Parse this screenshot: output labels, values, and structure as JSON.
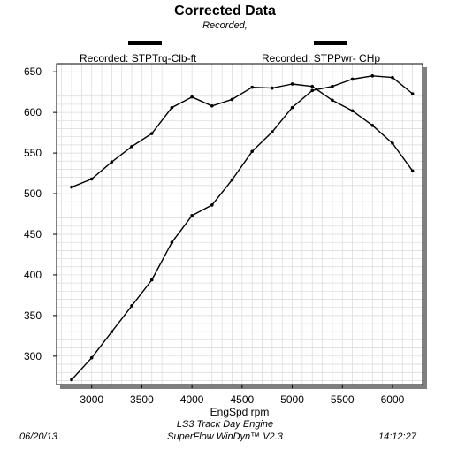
{
  "header": {
    "title": "Corrected Data",
    "subtitle": "Recorded,"
  },
  "legend": {
    "torque_label": "Recorded: STPTrq-Clb-ft",
    "power_label": "Recorded: STPPwr- CHp"
  },
  "footer": {
    "date": "06/20/13",
    "engine": "LS3 Track Day Engine",
    "software": "SuperFlow WinDyn™ V2.3",
    "time": "14:12:27"
  },
  "chart_data": {
    "type": "line",
    "xlabel": "EngSpd  rpm",
    "ylabel": "",
    "xlim": [
      2650,
      6300
    ],
    "ylim": [
      265,
      660
    ],
    "x_ticks": [
      3000,
      3500,
      4000,
      4500,
      5000,
      5500,
      6000
    ],
    "y_ticks": [
      300,
      350,
      400,
      450,
      500,
      550,
      600,
      650
    ],
    "grid": true,
    "series": [
      {
        "name": "Recorded: STPTrq-Clb-ft",
        "x": [
          2800,
          3000,
          3200,
          3400,
          3600,
          3800,
          4000,
          4200,
          4400,
          4600,
          4800,
          5000,
          5200,
          5400,
          5600,
          5800,
          6000,
          6200
        ],
        "values": [
          508,
          518,
          539,
          558,
          574,
          606,
          619,
          608,
          616,
          631,
          630,
          635,
          632,
          615,
          602,
          584,
          562,
          528
        ]
      },
      {
        "name": "Recorded: STPPwr- CHp",
        "x": [
          2800,
          3000,
          3200,
          3400,
          3600,
          3800,
          4000,
          4200,
          4400,
          4600,
          4800,
          5000,
          5200,
          5400,
          5600,
          5800,
          6000,
          6200
        ],
        "values": [
          271,
          298,
          330,
          362,
          394,
          440,
          473,
          486,
          517,
          552,
          576,
          606,
          627,
          632,
          641,
          645,
          643,
          623
        ]
      }
    ]
  }
}
